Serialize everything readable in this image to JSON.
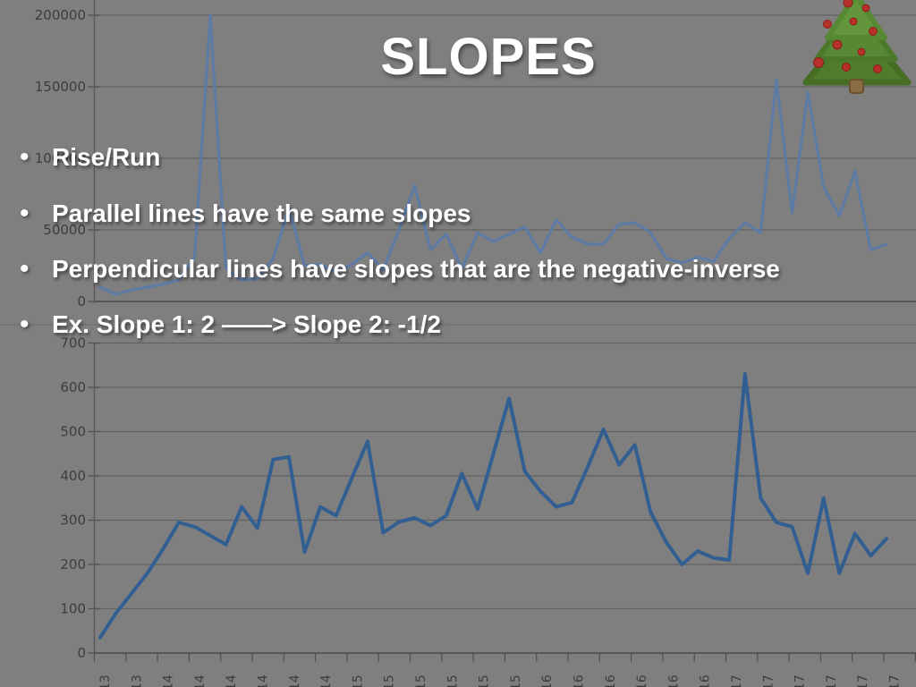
{
  "slide": {
    "title": "SLOPES",
    "bullet_marker": "•",
    "bullets": [
      "Rise/Run",
      "Parallel lines have the same slopes",
      "Perpendicular lines have slopes that are the negative-inverse",
      "Ex. Slope 1: 2 ——> Slope 2: -1/2"
    ]
  },
  "colors": {
    "background": "#7f7f7f",
    "text": "#ffffff",
    "gridline": "#616161",
    "axis_label": "#3d3d3d",
    "top_line": "#5c7ba6",
    "bottom_line": "#2e5e94",
    "tree_green": "#578934",
    "ornament_red": "#b8302a"
  },
  "chart_data": [
    {
      "type": "line",
      "position": "top",
      "title": "",
      "xlabel": "",
      "ylabel": "",
      "ylim": [
        0,
        200000
      ],
      "grid": true,
      "legend": "none",
      "y_tick_labels": [
        "0",
        "50000",
        "100000",
        "150000",
        "200000"
      ],
      "x_tick_labels": [],
      "line_color": "#5c7ba6",
      "values": [
        10000,
        5000,
        8000,
        10000,
        12000,
        15000,
        31000,
        200000,
        23000,
        15000,
        16000,
        30000,
        65000,
        25000,
        26000,
        20000,
        26000,
        34000,
        22000,
        50000,
        81000,
        36000,
        47000,
        23000,
        48000,
        42000,
        47000,
        52000,
        34000,
        57000,
        45000,
        40000,
        40000,
        54000,
        55000,
        48000,
        30000,
        27000,
        31000,
        28000,
        44000,
        55000,
        48000,
        155000,
        62000,
        146000,
        80000,
        60000,
        91000,
        36000,
        40000
      ]
    },
    {
      "type": "line",
      "position": "bottom",
      "title": "",
      "xlabel": "",
      "ylabel": "",
      "ylim": [
        0,
        700
      ],
      "grid": true,
      "legend": "none",
      "y_tick_labels": [
        "0",
        "100",
        "200",
        "300",
        "400",
        "500",
        "600",
        "700"
      ],
      "x_tick_labels": [
        "13",
        "13",
        "14",
        "14",
        "14",
        "14",
        "14",
        "14",
        "15",
        "15",
        "15",
        "15",
        "15",
        "15",
        "16",
        "16",
        "16",
        "16",
        "16",
        "16",
        "17",
        "17",
        "17",
        "17",
        "17",
        "17"
      ],
      "line_color": "#2e5e94",
      "values": [
        35,
        90,
        135,
        180,
        235,
        295,
        285,
        265,
        245,
        330,
        282,
        437,
        443,
        228,
        330,
        310,
        395,
        478,
        272,
        296,
        305,
        288,
        310,
        405,
        325,
        450,
        575,
        410,
        365,
        330,
        340,
        420,
        505,
        425,
        470,
        318,
        250,
        200,
        230,
        215,
        210,
        630,
        350,
        295,
        285,
        180,
        350,
        180,
        270,
        220,
        258
      ]
    }
  ]
}
